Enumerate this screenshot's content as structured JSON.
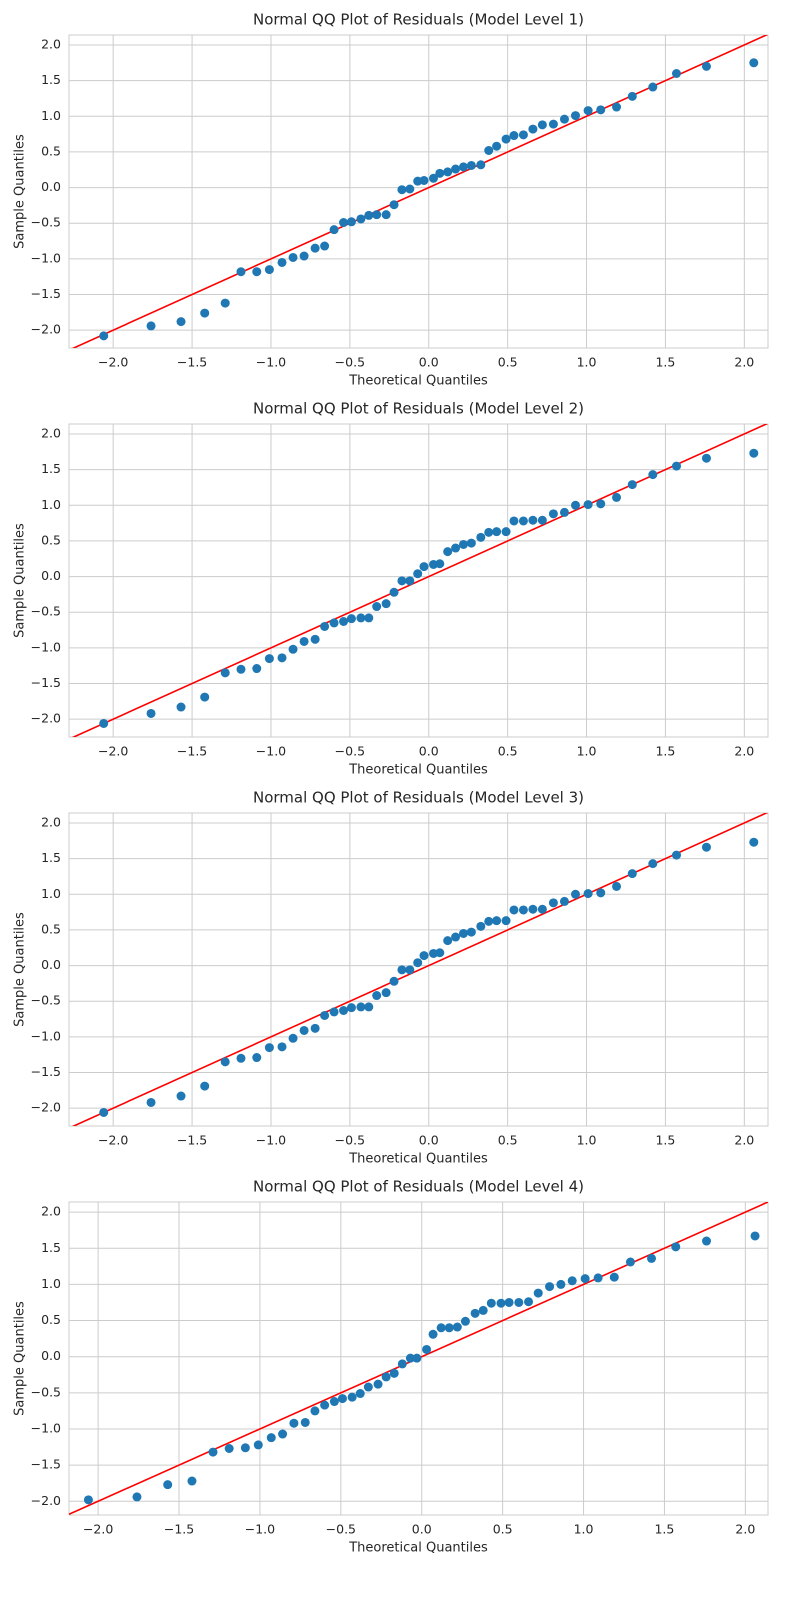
{
  "chart_data": [
    {
      "type": "scatter",
      "title": "Normal QQ Plot of Residuals (Model Level 1)",
      "x_label": "Theoretical Quantiles",
      "y_label": "Sample Quantiles",
      "color": "#1f77b4",
      "grid": true,
      "line": {
        "color": "#ff0000",
        "slope": 1,
        "intercept": 0
      },
      "x": [
        -2.06,
        -1.76,
        -1.57,
        -1.42,
        -1.29,
        -1.19,
        -1.09,
        -1.01,
        -0.93,
        -0.86,
        -0.79,
        -0.72,
        -0.66,
        -0.6,
        -0.54,
        -0.49,
        -0.43,
        -0.38,
        -0.33,
        -0.27,
        -0.22,
        -0.17,
        -0.12,
        -0.07,
        -0.03,
        0.03,
        0.07,
        0.12,
        0.17,
        0.22,
        0.27,
        0.33,
        0.38,
        0.43,
        0.49,
        0.54,
        0.6,
        0.66,
        0.72,
        0.79,
        0.86,
        0.93,
        1.01,
        1.09,
        1.19,
        1.29,
        1.42,
        1.57,
        1.76,
        2.06
      ],
      "values": [
        -2.08,
        -1.94,
        -1.88,
        -1.76,
        -1.62,
        -1.18,
        -1.18,
        -1.15,
        -1.05,
        -0.98,
        -0.96,
        -0.85,
        -0.82,
        -0.59,
        -0.49,
        -0.48,
        -0.44,
        -0.39,
        -0.38,
        -0.38,
        -0.24,
        -0.03,
        -0.02,
        0.09,
        0.1,
        0.13,
        0.2,
        0.22,
        0.26,
        0.29,
        0.31,
        0.32,
        0.52,
        0.58,
        0.68,
        0.73,
        0.74,
        0.82,
        0.88,
        0.89,
        0.96,
        1.01,
        1.08,
        1.09,
        1.13,
        1.28,
        1.41,
        1.6,
        1.7,
        1.75
      ],
      "xlim": [
        -2.28,
        2.15
      ],
      "ylim": [
        -2.25,
        2.14
      ],
      "xticks": [
        {
          "value": -2,
          "label": "−2.0"
        },
        {
          "value": -1.5,
          "label": "−1.5"
        },
        {
          "value": -1,
          "label": "−1.0"
        },
        {
          "value": -0.5,
          "label": "−0.5"
        },
        {
          "value": 0,
          "label": "0.0"
        },
        0.5,
        {
          "value": 1,
          "label": "1.0"
        },
        1.5,
        {
          "value": 2,
          "label": "2.0"
        }
      ],
      "yticks": [
        {
          "value": -2,
          "label": "−2.0"
        },
        {
          "value": -1.5,
          "label": "−1.5"
        },
        {
          "value": -1,
          "label": "−1.0"
        },
        {
          "value": -0.5,
          "label": "−0.5"
        },
        {
          "value": 0,
          "label": "0.0"
        },
        0.5,
        {
          "value": 1,
          "label": "1.0"
        },
        1.5,
        {
          "value": 2,
          "label": "2.0"
        }
      ]
    },
    {
      "type": "scatter",
      "title": "Normal QQ Plot of Residuals (Model Level 2)",
      "x_label": "Theoretical Quantiles",
      "y_label": "Sample Quantiles",
      "color": "#1f77b4",
      "grid": true,
      "line": {
        "color": "#ff0000",
        "slope": 1,
        "intercept": 0
      },
      "x": [
        -2.06,
        -1.76,
        -1.57,
        -1.42,
        -1.29,
        -1.19,
        -1.09,
        -1.01,
        -0.93,
        -0.86,
        -0.79,
        -0.72,
        -0.66,
        -0.6,
        -0.54,
        -0.49,
        -0.43,
        -0.38,
        -0.33,
        -0.27,
        -0.22,
        -0.17,
        -0.12,
        -0.07,
        -0.03,
        0.03,
        0.07,
        0.12,
        0.17,
        0.22,
        0.27,
        0.33,
        0.38,
        0.43,
        0.49,
        0.54,
        0.6,
        0.66,
        0.72,
        0.79,
        0.86,
        0.93,
        1.01,
        1.09,
        1.19,
        1.29,
        1.42,
        1.57,
        1.76,
        2.06
      ],
      "values": [
        -2.06,
        -1.92,
        -1.83,
        -1.69,
        -1.35,
        -1.3,
        -1.29,
        -1.15,
        -1.14,
        -1.02,
        -0.91,
        -0.88,
        -0.7,
        -0.65,
        -0.63,
        -0.59,
        -0.58,
        -0.58,
        -0.42,
        -0.38,
        -0.22,
        -0.06,
        -0.06,
        0.04,
        0.14,
        0.17,
        0.18,
        0.35,
        0.4,
        0.45,
        0.47,
        0.55,
        0.62,
        0.63,
        0.63,
        0.78,
        0.78,
        0.79,
        0.79,
        0.88,
        0.9,
        1,
        1.01,
        1.02,
        1.11,
        1.29,
        1.43,
        1.55,
        1.66,
        1.73
      ],
      "xlim": [
        -2.28,
        2.15
      ],
      "ylim": [
        -2.25,
        2.14
      ],
      "xticks": [
        {
          "value": -2,
          "label": "−2.0"
        },
        {
          "value": -1.5,
          "label": "−1.5"
        },
        {
          "value": -1,
          "label": "−1.0"
        },
        {
          "value": -0.5,
          "label": "−0.5"
        },
        {
          "value": 0,
          "label": "0.0"
        },
        0.5,
        {
          "value": 1,
          "label": "1.0"
        },
        1.5,
        {
          "value": 2,
          "label": "2.0"
        }
      ],
      "yticks": [
        {
          "value": -2,
          "label": "−2.0"
        },
        {
          "value": -1.5,
          "label": "−1.5"
        },
        {
          "value": -1,
          "label": "−1.0"
        },
        {
          "value": -0.5,
          "label": "−0.5"
        },
        {
          "value": 0,
          "label": "0.0"
        },
        0.5,
        {
          "value": 1,
          "label": "1.0"
        },
        1.5,
        {
          "value": 2,
          "label": "2.0"
        }
      ]
    },
    {
      "type": "scatter",
      "title": "Normal QQ Plot of Residuals (Model Level 3)",
      "x_label": "Theoretical Quantiles",
      "y_label": "Sample Quantiles",
      "color": "#1f77b4",
      "grid": true,
      "line": {
        "color": "#ff0000",
        "slope": 1,
        "intercept": 0
      },
      "x": [
        -2.06,
        -1.76,
        -1.57,
        -1.42,
        -1.29,
        -1.19,
        -1.09,
        -1.01,
        -0.93,
        -0.86,
        -0.79,
        -0.72,
        -0.66,
        -0.6,
        -0.54,
        -0.49,
        -0.43,
        -0.38,
        -0.33,
        -0.27,
        -0.22,
        -0.17,
        -0.12,
        -0.07,
        -0.03,
        0.03,
        0.07,
        0.12,
        0.17,
        0.22,
        0.27,
        0.33,
        0.38,
        0.43,
        0.49,
        0.54,
        0.6,
        0.66,
        0.72,
        0.79,
        0.86,
        0.93,
        1.01,
        1.09,
        1.19,
        1.29,
        1.42,
        1.57,
        1.76,
        2.06
      ],
      "values": [
        -2.06,
        -1.92,
        -1.83,
        -1.69,
        -1.35,
        -1.3,
        -1.29,
        -1.15,
        -1.14,
        -1.02,
        -0.91,
        -0.88,
        -0.7,
        -0.65,
        -0.63,
        -0.59,
        -0.58,
        -0.58,
        -0.42,
        -0.38,
        -0.22,
        -0.06,
        -0.06,
        0.04,
        0.14,
        0.17,
        0.18,
        0.35,
        0.4,
        0.45,
        0.47,
        0.55,
        0.62,
        0.63,
        0.63,
        0.78,
        0.78,
        0.79,
        0.79,
        0.88,
        0.9,
        1,
        1.01,
        1.02,
        1.11,
        1.29,
        1.43,
        1.55,
        1.66,
        1.73
      ],
      "xlim": [
        -2.28,
        2.15
      ],
      "ylim": [
        -2.25,
        2.14
      ],
      "xticks": [
        {
          "value": -2,
          "label": "−2.0"
        },
        {
          "value": -1.5,
          "label": "−1.5"
        },
        {
          "value": -1,
          "label": "−1.0"
        },
        {
          "value": -0.5,
          "label": "−0.5"
        },
        {
          "value": 0,
          "label": "0.0"
        },
        0.5,
        {
          "value": 1,
          "label": "1.0"
        },
        1.5,
        {
          "value": 2,
          "label": "2.0"
        }
      ],
      "yticks": [
        {
          "value": -2,
          "label": "−2.0"
        },
        {
          "value": -1.5,
          "label": "−1.5"
        },
        {
          "value": -1,
          "label": "−1.0"
        },
        {
          "value": -0.5,
          "label": "−0.5"
        },
        {
          "value": 0,
          "label": "0.0"
        },
        0.5,
        {
          "value": 1,
          "label": "1.0"
        },
        1.5,
        {
          "value": 2,
          "label": "2.0"
        }
      ]
    },
    {
      "type": "scatter",
      "title": "Normal QQ Plot of Residuals (Model Level 4)",
      "x_label": "Theoretical Quantiles",
      "y_label": "Sample Quantiles",
      "color": "#1f77b4",
      "grid": true,
      "line": {
        "color": "#ff0000",
        "slope": 1,
        "intercept": 0
      },
      "x": [
        -2.06,
        -1.76,
        -1.57,
        -1.42,
        -1.29,
        -1.19,
        -1.09,
        -1.01,
        -0.93,
        -0.86,
        -0.79,
        -0.72,
        -0.66,
        -0.6,
        -0.54,
        -0.49,
        -0.43,
        -0.38,
        -0.33,
        -0.27,
        -0.22,
        -0.17,
        -0.12,
        -0.07,
        -0.03,
        0.03,
        0.07,
        0.12,
        0.17,
        0.22,
        0.27,
        0.33,
        0.38,
        0.43,
        0.49,
        0.54,
        0.6,
        0.66,
        0.72,
        0.79,
        0.86,
        0.93,
        1.01,
        1.09,
        1.19,
        1.29,
        1.42,
        1.57,
        1.76,
        2.06
      ],
      "values": [
        -1.98,
        -1.94,
        -1.77,
        -1.72,
        -1.32,
        -1.27,
        -1.26,
        -1.22,
        -1.12,
        -1.07,
        -0.92,
        -0.91,
        -0.75,
        -0.67,
        -0.62,
        -0.58,
        -0.56,
        -0.51,
        -0.42,
        -0.38,
        -0.28,
        -0.23,
        -0.1,
        -0.02,
        -0.02,
        0.1,
        0.31,
        0.4,
        0.4,
        0.41,
        0.49,
        0.6,
        0.64,
        0.74,
        0.74,
        0.75,
        0.75,
        0.76,
        0.88,
        0.97,
        1,
        1.05,
        1.08,
        1.09,
        1.1,
        1.31,
        1.36,
        1.52,
        1.6,
        1.67
      ],
      "xlim": [
        -2.18,
        2.14
      ],
      "ylim": [
        -2.19,
        2.14
      ],
      "xticks": [
        {
          "value": -2,
          "label": "−2.0"
        },
        {
          "value": -1.5,
          "label": "−1.5"
        },
        {
          "value": -1,
          "label": "−1.0"
        },
        {
          "value": -0.5,
          "label": "−0.5"
        },
        {
          "value": 0,
          "label": "0.0"
        },
        0.5,
        {
          "value": 1,
          "label": "1.0"
        },
        1.5,
        {
          "value": 2,
          "label": "2.0"
        }
      ],
      "yticks": [
        {
          "value": -2,
          "label": "−2.0"
        },
        {
          "value": -1.5,
          "label": "−1.5"
        },
        {
          "value": -1,
          "label": "−1.0"
        },
        {
          "value": -0.5,
          "label": "−0.5"
        },
        {
          "value": 0,
          "label": "0.0"
        },
        0.5,
        {
          "value": 1,
          "label": "1.0"
        },
        1.5,
        {
          "value": 2,
          "label": "2.0"
        }
      ]
    }
  ]
}
